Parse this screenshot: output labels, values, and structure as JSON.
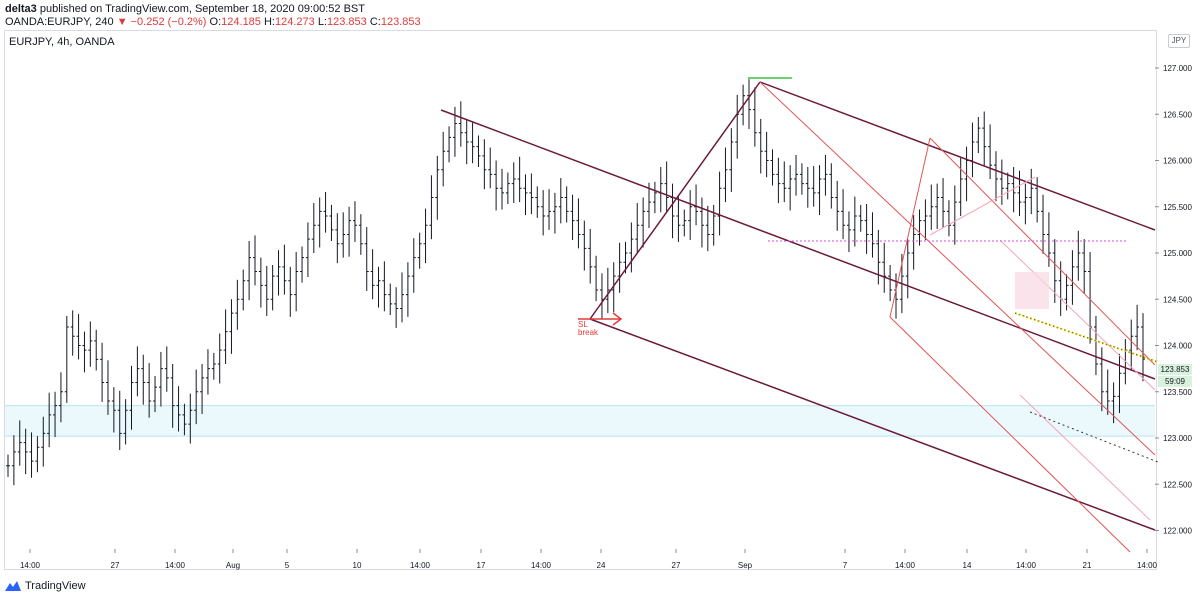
{
  "header": {
    "author": "delta3",
    "published_text": " published on TradingView.com, September 18, 2020 09:00:52 BST",
    "symbol": "OANDA:EURJPY, 240",
    "change": "▼ −0.252 (−0.2%)",
    "ohlc": [
      {
        "label": "O:",
        "value": "124.185"
      },
      {
        "label": "H:",
        "value": "124.273"
      },
      {
        "label": "L:",
        "value": "123.853"
      },
      {
        "label": "C:",
        "value": "123.853"
      }
    ],
    "change_color": "#e03b3b"
  },
  "chart_title": "EURJPY, 4h, OANDA",
  "currency_badge": "JPY",
  "last_price_label": "123.853",
  "countdown_label": "59:09",
  "annotation": {
    "line1": "SL",
    "line2": "break"
  },
  "footer": {
    "brand": "TradingView"
  },
  "chart_data": {
    "type": "candlestick",
    "symbol": "EURJPY",
    "timeframe": "4h",
    "exchange": "OANDA",
    "ylim": [
      121.8,
      127.4
    ],
    "y_ticks": [
      "122.000",
      "122.500",
      "123.000",
      "123.500",
      "124.000",
      "124.500",
      "125.000",
      "125.500",
      "126.000",
      "126.500",
      "127.000"
    ],
    "x_ticks": [
      "14:00",
      "27",
      "14:00",
      "Aug",
      "5",
      "10",
      "14:00",
      "17",
      "14:00",
      "24",
      "27",
      "Sep",
      "7",
      "14:00",
      "14",
      "14:00",
      "21",
      "14:00"
    ],
    "last_price": 123.853,
    "closes": [
      122.7,
      122.85,
      122.95,
      122.85,
      122.75,
      122.9,
      123.05,
      123.25,
      123.35,
      123.5,
      124.2,
      124.1,
      124.0,
      123.95,
      124.05,
      123.85,
      123.6,
      123.4,
      123.3,
      123.05,
      123.3,
      123.6,
      123.75,
      123.6,
      123.4,
      123.55,
      123.75,
      123.65,
      123.35,
      123.25,
      123.15,
      123.3,
      123.5,
      123.65,
      123.75,
      123.8,
      123.95,
      124.15,
      124.35,
      124.5,
      124.7,
      124.95,
      124.8,
      124.65,
      124.5,
      124.75,
      124.85,
      124.7,
      124.55,
      124.8,
      124.95,
      125.15,
      125.3,
      125.45,
      125.4,
      125.25,
      125.1,
      125.2,
      125.35,
      125.3,
      125.1,
      124.8,
      124.65,
      124.7,
      124.55,
      124.45,
      124.4,
      124.55,
      124.75,
      124.95,
      125.1,
      125.3,
      125.6,
      125.9,
      126.1,
      126.25,
      126.4,
      126.3,
      126.2,
      126.15,
      126.05,
      125.9,
      125.85,
      125.7,
      125.65,
      125.75,
      125.8,
      125.7,
      125.65,
      125.6,
      125.5,
      125.4,
      125.45,
      125.5,
      125.6,
      125.45,
      125.35,
      125.2,
      125.05,
      124.85,
      124.6,
      124.5,
      124.6,
      124.75,
      124.9,
      125.0,
      125.15,
      125.3,
      125.45,
      125.55,
      125.65,
      125.75,
      125.6,
      125.4,
      125.3,
      125.35,
      125.5,
      125.45,
      125.3,
      125.2,
      125.4,
      125.7,
      125.9,
      126.2,
      126.5,
      126.7,
      126.55,
      126.3,
      126.1,
      126.0,
      125.85,
      125.75,
      125.7,
      125.8,
      125.85,
      125.75,
      125.7,
      125.65,
      125.8,
      125.85,
      125.6,
      125.45,
      125.3,
      125.25,
      125.4,
      125.35,
      125.2,
      125.1,
      124.9,
      124.75,
      124.6,
      124.5,
      124.75,
      125.0,
      125.2,
      125.35,
      125.4,
      125.5,
      125.6,
      125.45,
      125.3,
      125.55,
      125.8,
      126.0,
      126.2,
      126.35,
      126.15,
      125.95,
      125.8,
      125.7,
      125.75,
      125.65,
      125.55,
      125.6,
      125.7,
      125.45,
      125.2,
      125.0,
      124.7,
      124.5,
      124.65,
      124.85,
      125.0,
      124.8,
      124.2,
      123.8,
      123.5,
      123.4,
      123.45,
      123.7,
      123.95,
      124.1,
      124.2,
      123.853
    ],
    "series": [
      {
        "name": "Fibonacci channel upper",
        "points": [
          [
            35,
            126.75
          ],
          [
            197,
            121.85
          ]
        ]
      },
      {
        "name": "Fibonacci channel lower",
        "points": [
          [
            96,
            124.4
          ],
          [
            197,
            121.95
          ]
        ]
      }
    ],
    "grid": true,
    "legend": "none"
  }
}
